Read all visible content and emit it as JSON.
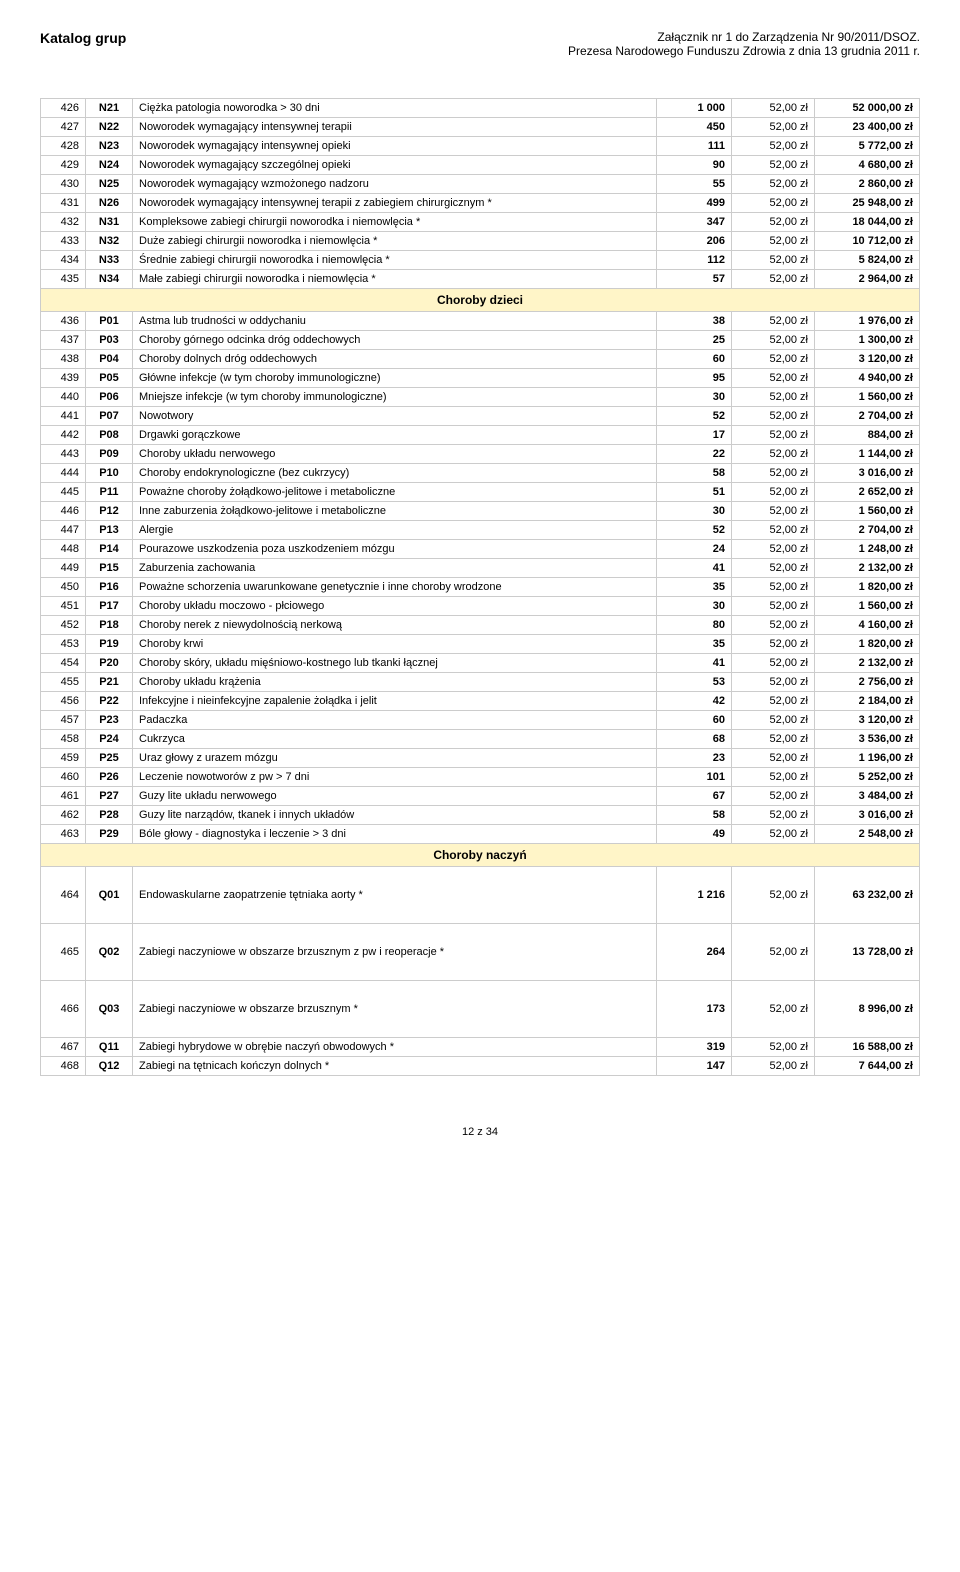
{
  "header": {
    "left": "Katalog grup",
    "right1": "Załącznik nr 1 do Zarządzenia Nr 90/2011/DSOZ.",
    "right2": "Prezesa Narodowego Funduszu Zdrowia z dnia 13 grudnia 2011 r."
  },
  "footer": "12 z 34",
  "rate_label": "52,00 zł",
  "rows": [
    {
      "n": "426",
      "c": "N21",
      "d": "Ciężka patologia noworodka > 30 dni",
      "p": "1 000",
      "t": "52 000,00 zł"
    },
    {
      "n": "427",
      "c": "N22",
      "d": "Noworodek wymagający intensywnej terapii",
      "p": "450",
      "t": "23 400,00 zł"
    },
    {
      "n": "428",
      "c": "N23",
      "d": "Noworodek wymagający intensywnej opieki",
      "p": "111",
      "t": "5 772,00 zł"
    },
    {
      "n": "429",
      "c": "N24",
      "d": "Noworodek wymagający szczególnej opieki",
      "p": "90",
      "t": "4 680,00 zł"
    },
    {
      "n": "430",
      "c": "N25",
      "d": "Noworodek wymagający wzmożonego nadzoru",
      "p": "55",
      "t": "2 860,00 zł"
    },
    {
      "n": "431",
      "c": "N26",
      "d": "Noworodek wymagający intensywnej terapii z zabiegiem chirurgicznym *",
      "p": "499",
      "t": "25 948,00 zł"
    },
    {
      "n": "432",
      "c": "N31",
      "d": "Kompleksowe zabiegi chirurgii noworodka i niemowlęcia *",
      "p": "347",
      "t": "18 044,00 zł"
    },
    {
      "n": "433",
      "c": "N32",
      "d": "Duże zabiegi chirurgii noworodka i niemowlęcia *",
      "p": "206",
      "t": "10 712,00 zł"
    },
    {
      "n": "434",
      "c": "N33",
      "d": "Średnie zabiegi chirurgii noworodka i niemowlęcia *",
      "p": "112",
      "t": "5 824,00 zł"
    },
    {
      "n": "435",
      "c": "N34",
      "d": "Małe zabiegi chirurgii noworodka i niemowlęcia *",
      "p": "57",
      "t": "2 964,00 zł"
    },
    {
      "section": "Choroby dzieci"
    },
    {
      "n": "436",
      "c": "P01",
      "d": "Astma lub trudności w oddychaniu",
      "p": "38",
      "t": "1 976,00 zł"
    },
    {
      "n": "437",
      "c": "P03",
      "d": "Choroby górnego odcinka dróg oddechowych",
      "p": "25",
      "t": "1 300,00 zł"
    },
    {
      "n": "438",
      "c": "P04",
      "d": "Choroby dolnych dróg oddechowych",
      "p": "60",
      "t": "3 120,00 zł"
    },
    {
      "n": "439",
      "c": "P05",
      "d": "Główne infekcje (w tym choroby immunologiczne)",
      "p": "95",
      "t": "4 940,00 zł"
    },
    {
      "n": "440",
      "c": "P06",
      "d": "Mniejsze infekcje (w tym choroby immunologiczne)",
      "p": "30",
      "t": "1 560,00 zł"
    },
    {
      "n": "441",
      "c": "P07",
      "d": "Nowotwory",
      "p": "52",
      "t": "2 704,00 zł"
    },
    {
      "n": "442",
      "c": "P08",
      "d": "Drgawki gorączkowe",
      "p": "17",
      "t": "884,00 zł"
    },
    {
      "n": "443",
      "c": "P09",
      "d": "Choroby układu nerwowego",
      "p": "22",
      "t": "1 144,00 zł"
    },
    {
      "n": "444",
      "c": "P10",
      "d": "Choroby endokrynologiczne (bez cukrzycy)",
      "p": "58",
      "t": "3 016,00 zł"
    },
    {
      "n": "445",
      "c": "P11",
      "d": "Poważne choroby żołądkowo-jelitowe i metaboliczne",
      "p": "51",
      "t": "2 652,00 zł"
    },
    {
      "n": "446",
      "c": "P12",
      "d": "Inne zaburzenia żołądkowo-jelitowe i metaboliczne",
      "p": "30",
      "t": "1 560,00 zł"
    },
    {
      "n": "447",
      "c": "P13",
      "d": "Alergie",
      "p": "52",
      "t": "2 704,00 zł"
    },
    {
      "n": "448",
      "c": "P14",
      "d": "Pourazowe uszkodzenia poza uszkodzeniem mózgu",
      "p": "24",
      "t": "1 248,00 zł"
    },
    {
      "n": "449",
      "c": "P15",
      "d": "Zaburzenia zachowania",
      "p": "41",
      "t": "2 132,00 zł"
    },
    {
      "n": "450",
      "c": "P16",
      "d": "Poważne schorzenia uwarunkowane genetycznie i inne choroby wrodzone",
      "p": "35",
      "t": "1 820,00 zł"
    },
    {
      "n": "451",
      "c": "P17",
      "d": "Choroby układu moczowo - płciowego",
      "p": "30",
      "t": "1 560,00 zł"
    },
    {
      "n": "452",
      "c": "P18",
      "d": "Choroby nerek z niewydolnością nerkową",
      "p": "80",
      "t": "4 160,00 zł"
    },
    {
      "n": "453",
      "c": "P19",
      "d": "Choroby krwi",
      "p": "35",
      "t": "1 820,00 zł"
    },
    {
      "n": "454",
      "c": "P20",
      "d": "Choroby skóry, układu mięśniowo-kostnego lub tkanki łącznej",
      "p": "41",
      "t": "2 132,00 zł"
    },
    {
      "n": "455",
      "c": "P21",
      "d": "Choroby układu krążenia",
      "p": "53",
      "t": "2 756,00 zł"
    },
    {
      "n": "456",
      "c": "P22",
      "d": "Infekcyjne i nieinfekcyjne zapalenie żołądka i jelit",
      "p": "42",
      "t": "2 184,00 zł"
    },
    {
      "n": "457",
      "c": "P23",
      "d": "Padaczka",
      "p": "60",
      "t": "3 120,00 zł"
    },
    {
      "n": "458",
      "c": "P24",
      "d": "Cukrzyca",
      "p": "68",
      "t": "3 536,00 zł"
    },
    {
      "n": "459",
      "c": "P25",
      "d": "Uraz głowy z urazem mózgu",
      "p": "23",
      "t": "1 196,00 zł"
    },
    {
      "n": "460",
      "c": "P26",
      "d": "Leczenie nowotworów z pw > 7 dni",
      "p": "101",
      "t": "5 252,00 zł"
    },
    {
      "n": "461",
      "c": "P27",
      "d": "Guzy lite układu nerwowego",
      "p": "67",
      "t": "3 484,00 zł"
    },
    {
      "n": "462",
      "c": "P28",
      "d": "Guzy lite narządów, tkanek i innych układów",
      "p": "58",
      "t": "3 016,00 zł"
    },
    {
      "n": "463",
      "c": "P29",
      "d": "Bóle głowy - diagnostyka i leczenie > 3 dni",
      "p": "49",
      "t": "2 548,00 zł"
    },
    {
      "section": "Choroby naczyń"
    },
    {
      "n": "464",
      "c": "Q01",
      "d": "Endowaskularne zaopatrzenie tętniaka aorty *",
      "p": "1 216",
      "t": "63 232,00 zł",
      "tall": true
    },
    {
      "n": "465",
      "c": "Q02",
      "d": "Zabiegi naczyniowe w obszarze brzusznym z pw i reoperacje *",
      "p": "264",
      "t": "13 728,00 zł",
      "tall": true
    },
    {
      "n": "466",
      "c": "Q03",
      "d": "Zabiegi naczyniowe w obszarze brzusznym *",
      "p": "173",
      "t": "8 996,00 zł",
      "tall": true
    },
    {
      "n": "467",
      "c": "Q11",
      "d": "Zabiegi hybrydowe w obrębie naczyń obwodowych *",
      "p": "319",
      "t": "16 588,00 zł"
    },
    {
      "n": "468",
      "c": "Q12",
      "d": "Zabiegi na tętnicach kończyn dolnych *",
      "p": "147",
      "t": "7 644,00 zł"
    }
  ]
}
